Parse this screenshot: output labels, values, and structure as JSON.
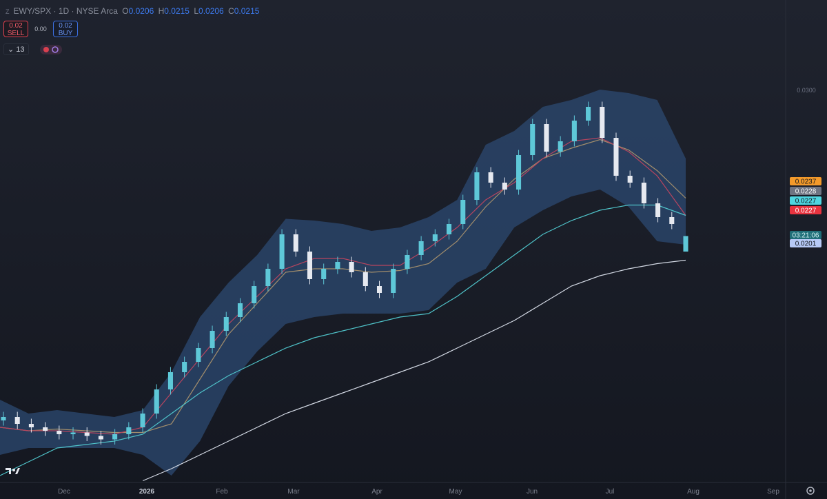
{
  "header": {
    "logo": "Z",
    "symbol": "EWY/SPX · 1D · NYSE Arca",
    "ohlc_labels": [
      "O",
      "H",
      "L",
      "C"
    ]
  },
  "trade": {
    "sell_price": "0.02",
    "sell_label": "SELL",
    "spread": "0.00",
    "buy_price": "0.02",
    "buy_label": "BUY"
  },
  "indicators_count": "13",
  "chart_data": {
    "type": "candlestick",
    "up_color": "#5ec8d8",
    "down_color": "#e6e9f0",
    "open": [
      0.0108,
      0.011,
      0.0106,
      0.0104,
      0.0102,
      0.01,
      0.0101,
      0.0099,
      0.0097,
      0.01,
      0.0104,
      0.0112,
      0.0126,
      0.0136,
      0.0142,
      0.015,
      0.016,
      0.0168,
      0.0176,
      0.0186,
      0.0196,
      0.0216,
      0.0206,
      0.019,
      0.0196,
      0.02,
      0.0194,
      0.0186,
      0.0182,
      0.0196,
      0.0204,
      0.0212,
      0.0216,
      0.0222,
      0.0236,
      0.0252,
      0.0246,
      0.0242,
      0.0262,
      0.028,
      0.0264,
      0.027,
      0.0282,
      0.029,
      0.0272,
      0.025,
      0.0246,
      0.0234,
      0.0226,
      0.0206
    ],
    "high": [
      0.0113,
      0.0113,
      0.0109,
      0.0107,
      0.0105,
      0.0104,
      0.0104,
      0.0102,
      0.0103,
      0.0107,
      0.0115,
      0.0129,
      0.0139,
      0.0145,
      0.0153,
      0.0163,
      0.0171,
      0.0179,
      0.0189,
      0.0199,
      0.0219,
      0.0219,
      0.0209,
      0.0199,
      0.0203,
      0.0203,
      0.0197,
      0.0189,
      0.0199,
      0.0207,
      0.0215,
      0.0219,
      0.0225,
      0.0239,
      0.0255,
      0.0255,
      0.0249,
      0.0265,
      0.0283,
      0.0283,
      0.0273,
      0.0285,
      0.0293,
      0.0293,
      0.0275,
      0.0253,
      0.0249,
      0.0237,
      0.0229,
      0.0215
    ],
    "low": [
      0.0105,
      0.0103,
      0.0101,
      0.0099,
      0.0097,
      0.0097,
      0.0096,
      0.0094,
      0.0094,
      0.0097,
      0.0101,
      0.0109,
      0.0123,
      0.0133,
      0.0139,
      0.0147,
      0.0157,
      0.0165,
      0.0173,
      0.0183,
      0.0193,
      0.0203,
      0.0187,
      0.0187,
      0.0193,
      0.0191,
      0.0183,
      0.0179,
      0.0179,
      0.0193,
      0.0201,
      0.0209,
      0.0213,
      0.0219,
      0.0233,
      0.0243,
      0.0239,
      0.0239,
      0.0259,
      0.0261,
      0.0261,
      0.0267,
      0.0279,
      0.0269,
      0.0247,
      0.0243,
      0.0231,
      0.0223,
      0.0219,
      0.0206
    ],
    "close": [
      0.011,
      0.0106,
      0.0104,
      0.0102,
      0.01,
      0.0101,
      0.0099,
      0.0097,
      0.01,
      0.0104,
      0.0112,
      0.0126,
      0.0136,
      0.0142,
      0.015,
      0.016,
      0.0168,
      0.0176,
      0.0186,
      0.0196,
      0.0216,
      0.0206,
      0.019,
      0.0196,
      0.02,
      0.0194,
      0.0186,
      0.0182,
      0.0196,
      0.0204,
      0.0212,
      0.0216,
      0.0222,
      0.0236,
      0.0252,
      0.0246,
      0.0242,
      0.0262,
      0.028,
      0.0264,
      0.027,
      0.0282,
      0.029,
      0.0272,
      0.025,
      0.0246,
      0.0234,
      0.0226,
      0.0222,
      0.0215
    ],
    "band": {
      "color": "#2c4a72",
      "upper": [
        0.012,
        0.0112,
        0.0114,
        0.0112,
        0.011,
        0.0114,
        0.0136,
        0.0168,
        0.0188,
        0.0204,
        0.0225,
        0.0224,
        0.0222,
        0.0218,
        0.022,
        0.0226,
        0.0236,
        0.0268,
        0.0276,
        0.029,
        0.0294,
        0.03,
        0.0298,
        0.0294,
        0.026
      ],
      "lower": [
        0.0088,
        0.0092,
        0.0092,
        0.0092,
        0.0092,
        0.0088,
        0.0076,
        0.0096,
        0.0128,
        0.0148,
        0.0164,
        0.0168,
        0.017,
        0.017,
        0.017,
        0.0172,
        0.0188,
        0.0196,
        0.022,
        0.023,
        0.0238,
        0.0242,
        0.0232,
        0.0212,
        0.021
      ]
    },
    "series": [
      {
        "color": "#a38e6c",
        "values": [
          0.0104,
          0.0102,
          0.0103,
          0.0102,
          0.0101,
          0.0101,
          0.0106,
          0.0132,
          0.0158,
          0.0176,
          0.0194,
          0.0196,
          0.0196,
          0.0194,
          0.0195,
          0.0199,
          0.0212,
          0.0232,
          0.0248,
          0.026,
          0.0266,
          0.0271,
          0.0265,
          0.0253,
          0.0237
        ]
      },
      {
        "color": "#b8455f",
        "values": [
          0.0104,
          0.0102,
          0.0102,
          0.0101,
          0.01,
          0.0104,
          0.0124,
          0.0144,
          0.0164,
          0.018,
          0.0196,
          0.0202,
          0.0202,
          0.0198,
          0.0198,
          0.0208,
          0.022,
          0.0236,
          0.0246,
          0.026,
          0.027,
          0.0272,
          0.0264,
          0.025,
          0.0227
        ]
      },
      {
        "color": "#4fc3c9",
        "values": [
          0.0076,
          0.0084,
          0.0092,
          0.0094,
          0.0096,
          0.01,
          0.0112,
          0.0124,
          0.0134,
          0.0142,
          0.015,
          0.0156,
          0.016,
          0.0164,
          0.0168,
          0.017,
          0.018,
          0.0192,
          0.0204,
          0.0216,
          0.0224,
          0.023,
          0.0233,
          0.0233,
          0.0227
        ]
      },
      {
        "color": "#d3d9e4",
        "values": [
          null,
          null,
          null,
          null,
          null,
          0.0073,
          0.008,
          0.0088,
          0.0096,
          0.0104,
          0.0112,
          0.0118,
          0.0124,
          0.013,
          0.0136,
          0.0142,
          0.015,
          0.0158,
          0.0166,
          0.0176,
          0.0186,
          0.0192,
          0.0196,
          0.0199,
          0.0201
        ]
      }
    ],
    "ylim": [
      0.0072,
      0.0352
    ],
    "yticks": [
      {
        "value": 0.03,
        "label": "0.0300"
      }
    ],
    "x_labels": [
      "Dec",
      "2026",
      "Feb",
      "Mar",
      "Apr",
      "May",
      "Jun",
      "Jul",
      "Aug",
      "Sep"
    ],
    "price_labels": [
      {
        "value": 0.0237,
        "color": "#f39a2b",
        "text_color": "#1a1a1a"
      },
      {
        "value": 0.0228,
        "color": "#6f7482",
        "text_color": "#ffffff"
      },
      {
        "value": 0.0227,
        "color": "#4fd6e0",
        "text_color": "#10151c"
      },
      {
        "value": 0.0227,
        "color": "#e8333f",
        "text_color": "#ffffff"
      },
      {
        "value": 0.0201,
        "color": "#b7c9f5",
        "text_color": "#10151c"
      }
    ],
    "countdown": {
      "text": "03:21:06",
      "color": "#1f6e78",
      "text_color": "#d6f3f5"
    }
  }
}
